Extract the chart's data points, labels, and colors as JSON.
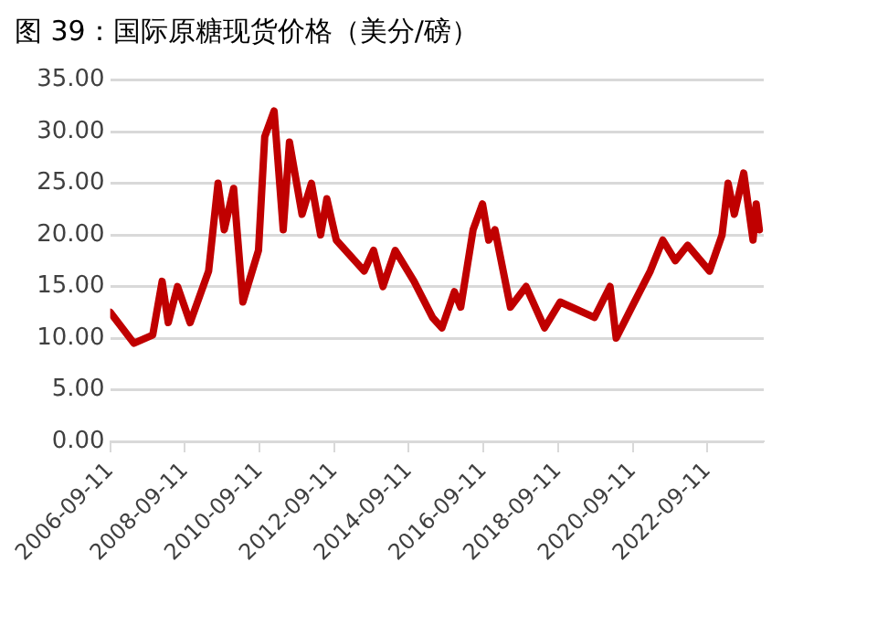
{
  "chart_data": {
    "type": "line",
    "title": "图 39：国际原糖现货价格（美分/磅）",
    "x": [
      "2006-09-11",
      "2007-05",
      "2007-11",
      "2008-02",
      "2008-04",
      "2008-07",
      "2008-11",
      "2009-05",
      "2009-08",
      "2009-10",
      "2010-01",
      "2010-04",
      "2010-09",
      "2010-11",
      "2011-02",
      "2011-05",
      "2011-07",
      "2011-11",
      "2012-02",
      "2012-05",
      "2012-07",
      "2012-10",
      "2013-07",
      "2013-10",
      "2014-01",
      "2014-05",
      "2014-11",
      "2015-05",
      "2015-08",
      "2015-12",
      "2016-02",
      "2016-06",
      "2016-09",
      "2016-11",
      "2017-01",
      "2017-06",
      "2017-11",
      "2018-05",
      "2018-10",
      "2019-09",
      "2020-02",
      "2020-04",
      "2020-09",
      "2021-03",
      "2021-07",
      "2021-11",
      "2022-03",
      "2022-10",
      "2023-02",
      "2023-04",
      "2023-06",
      "2023-09",
      "2023-12",
      "2024-01",
      "2024-02"
    ],
    "series": [
      {
        "color": "#c00000",
        "values": [
          12.5,
          9.5,
          10.3,
          15.5,
          11.5,
          15,
          11.5,
          16.5,
          25,
          20.5,
          24.5,
          13.5,
          18.5,
          29.5,
          32,
          20.5,
          29,
          22,
          25,
          20,
          23.5,
          19.5,
          16.5,
          18.5,
          15,
          18.5,
          15.5,
          12,
          11,
          14.5,
          13,
          20.5,
          23,
          19.5,
          20.5,
          13,
          15,
          11,
          13.5,
          12,
          15,
          10,
          13,
          16.5,
          19.5,
          17.5,
          19,
          16.5,
          20,
          25,
          22,
          26,
          19.5,
          23,
          20.5
        ]
      }
    ],
    "xlim": [
      "2006-09-11",
      "2024-03-15"
    ],
    "xticks": [
      "2006-09-11",
      "2008-09-11",
      "2010-09-11",
      "2012-09-11",
      "2014-09-11",
      "2016-09-11",
      "2018-09-11",
      "2020-09-11",
      "2022-09-11"
    ],
    "ylim": [
      0,
      35
    ],
    "yticks": [
      {
        "value": 0,
        "label": "0.00"
      },
      {
        "value": 5,
        "label": "5.00"
      },
      {
        "value": 10,
        "label": "10.00"
      },
      {
        "value": 15,
        "label": "15.00"
      },
      {
        "value": 20,
        "label": "20.00"
      },
      {
        "value": 25,
        "label": "25.00"
      },
      {
        "value": 30,
        "label": "30.00"
      },
      {
        "value": 35,
        "label": "35.00"
      }
    ],
    "grid": "y",
    "legend": false,
    "marker": "none",
    "line_style": "solid"
  }
}
